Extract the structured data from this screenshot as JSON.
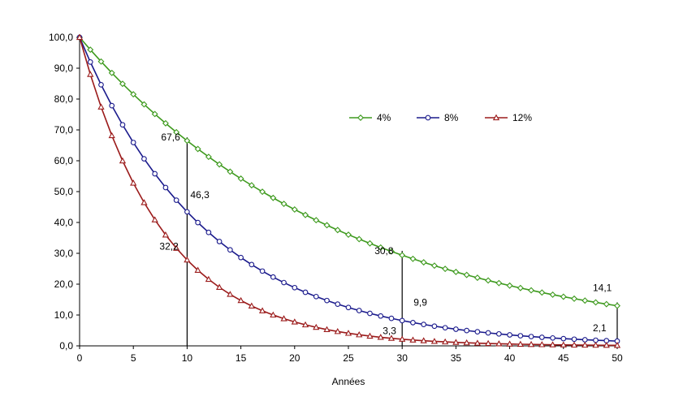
{
  "chart_data": {
    "type": "line",
    "xlabel": "Années",
    "ylabel": "",
    "xlim": [
      0,
      50
    ],
    "ylim": [
      0,
      100
    ],
    "xticks": [
      "0",
      "5",
      "10",
      "15",
      "20",
      "25",
      "30",
      "35",
      "40",
      "45",
      "50"
    ],
    "yticks": [
      "0,0",
      "10,0",
      "20,0",
      "30,0",
      "40,0",
      "50,0",
      "60,0",
      "70,0",
      "80,0",
      "90,0",
      "100,0"
    ],
    "grid": false,
    "legend_position": "top-right",
    "series": [
      {
        "name": "4%",
        "color": "#3e9a1e",
        "marker": "diamond",
        "rate": 0.04
      },
      {
        "name": "8%",
        "color": "#1a1a8c",
        "marker": "circle",
        "rate": 0.08
      },
      {
        "name": "12%",
        "color": "#9b1b1b",
        "marker": "triangle",
        "rate": 0.12
      }
    ],
    "x": [
      0,
      1,
      2,
      3,
      4,
      5,
      6,
      7,
      8,
      9,
      10,
      11,
      12,
      13,
      14,
      15,
      16,
      17,
      18,
      19,
      20,
      21,
      22,
      23,
      24,
      25,
      26,
      27,
      28,
      29,
      30,
      31,
      32,
      33,
      34,
      35,
      36,
      37,
      38,
      39,
      40,
      41,
      42,
      43,
      44,
      45,
      46,
      47,
      48,
      49,
      50
    ],
    "reference_lines": [
      {
        "x": 10,
        "from": 0,
        "to": 67.6
      },
      {
        "x": 30,
        "from": 0,
        "to": 30.8
      },
      {
        "x": 50,
        "from": 0,
        "to": 14.1
      }
    ],
    "annotations": [
      {
        "text": "67,6",
        "x": 10,
        "y": 67.6
      },
      {
        "text": "46,3",
        "x": 10,
        "y": 46.3
      },
      {
        "text": "32,2",
        "x": 10,
        "y": 32.2
      },
      {
        "text": "30,8",
        "x": 30,
        "y": 30.8
      },
      {
        "text": "9,9",
        "x": 30,
        "y": 9.9
      },
      {
        "text": "3,3",
        "x": 30,
        "y": 3.3
      },
      {
        "text": "14,1",
        "x": 50,
        "y": 14.1
      },
      {
        "text": "2,1",
        "x": 50,
        "y": 2.1
      }
    ]
  }
}
